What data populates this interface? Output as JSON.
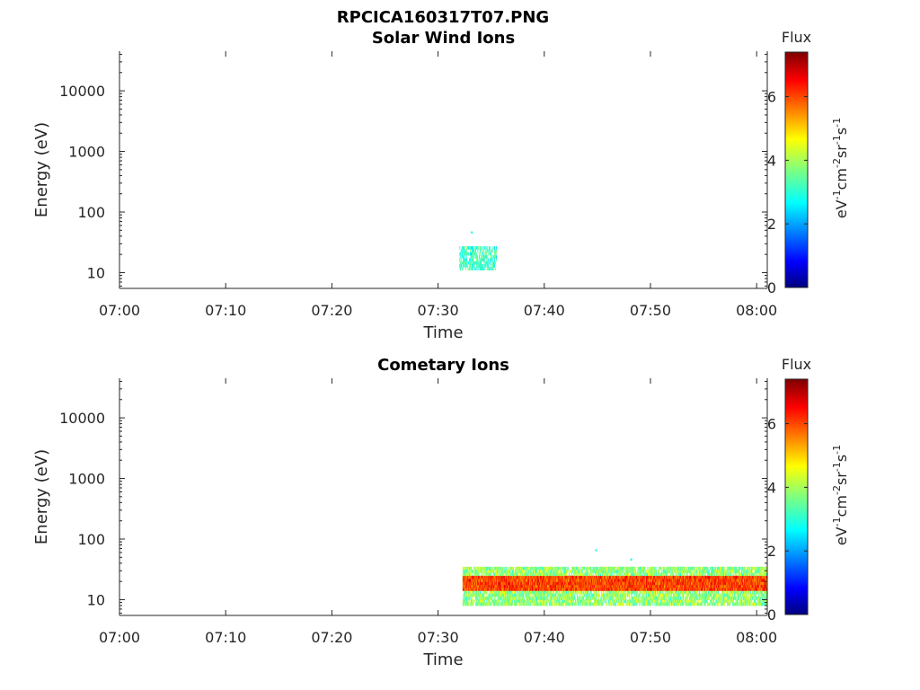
{
  "figure_title": "RPCICA160317T07.PNG",
  "chart_data": [
    {
      "type": "heatmap",
      "title": "Solar Wind Ions",
      "xlabel": "Time",
      "ylabel": "Energy (eV)",
      "x_ticks": [
        "07:00",
        "07:10",
        "07:20",
        "07:30",
        "07:40",
        "07:50",
        "08:00"
      ],
      "xlim": [
        "07:00",
        "08:01"
      ],
      "y_scale": "log",
      "y_ticks": [
        10,
        100,
        1000,
        10000
      ],
      "y_tick_labels": [
        "10",
        "100",
        "1000",
        "10000"
      ],
      "ylim": [
        5.5,
        45000
      ],
      "colorbar": {
        "title": "Flux",
        "label_parts": [
          "eV",
          "-1",
          "cm",
          "-2",
          "sr",
          "-1",
          "s",
          "-1"
        ],
        "ticks": [
          0,
          2,
          4,
          6
        ],
        "range": [
          0,
          7.4
        ],
        "colormap": "jet"
      },
      "features": [
        {
          "description": "sparse flux patch",
          "t_start": "07:32",
          "t_end": "07:35.5",
          "e_low": 11,
          "e_high": 26,
          "flux_range": [
            2.5,
            3.8
          ]
        },
        {
          "description": "isolated point",
          "t_start": "07:33.1",
          "t_end": "07:33.2",
          "e_low": 44,
          "e_high": 48,
          "flux_range": [
            3.0,
            3.0
          ]
        }
      ]
    },
    {
      "type": "heatmap",
      "title": "Cometary Ions",
      "xlabel": "Time",
      "ylabel": "Energy (eV)",
      "x_ticks": [
        "07:00",
        "07:10",
        "07:20",
        "07:30",
        "07:40",
        "07:50",
        "08:00"
      ],
      "xlim": [
        "07:00",
        "08:01"
      ],
      "y_scale": "log",
      "y_ticks": [
        10,
        100,
        1000,
        10000
      ],
      "y_tick_labels": [
        "10",
        "100",
        "1000",
        "10000"
      ],
      "ylim": [
        5.5,
        45000
      ],
      "colorbar": {
        "title": "Flux",
        "label_parts": [
          "eV",
          "-1",
          "cm",
          "-2",
          "sr",
          "-1",
          "s",
          "-1"
        ],
        "ticks": [
          0,
          2,
          4,
          6
        ],
        "range": [
          0,
          7.4
        ],
        "colormap": "jet"
      },
      "features": [
        {
          "description": "continuous ion band",
          "t_start": "07:32.3",
          "t_end": "08:01",
          "e_low": 8,
          "e_high": 32,
          "core_low": 13,
          "core_high": 24,
          "flux_range": [
            3.0,
            6.8
          ]
        },
        {
          "description": "isolated point",
          "t_start": "07:44.8",
          "t_end": "07:44.9",
          "e_low": 63,
          "e_high": 68,
          "flux_range": [
            3.0,
            3.0
          ]
        },
        {
          "description": "isolated point",
          "t_start": "07:48.1",
          "t_end": "07:48.2",
          "e_low": 44,
          "e_high": 48,
          "flux_range": [
            3.0,
            3.0
          ]
        }
      ]
    }
  ]
}
